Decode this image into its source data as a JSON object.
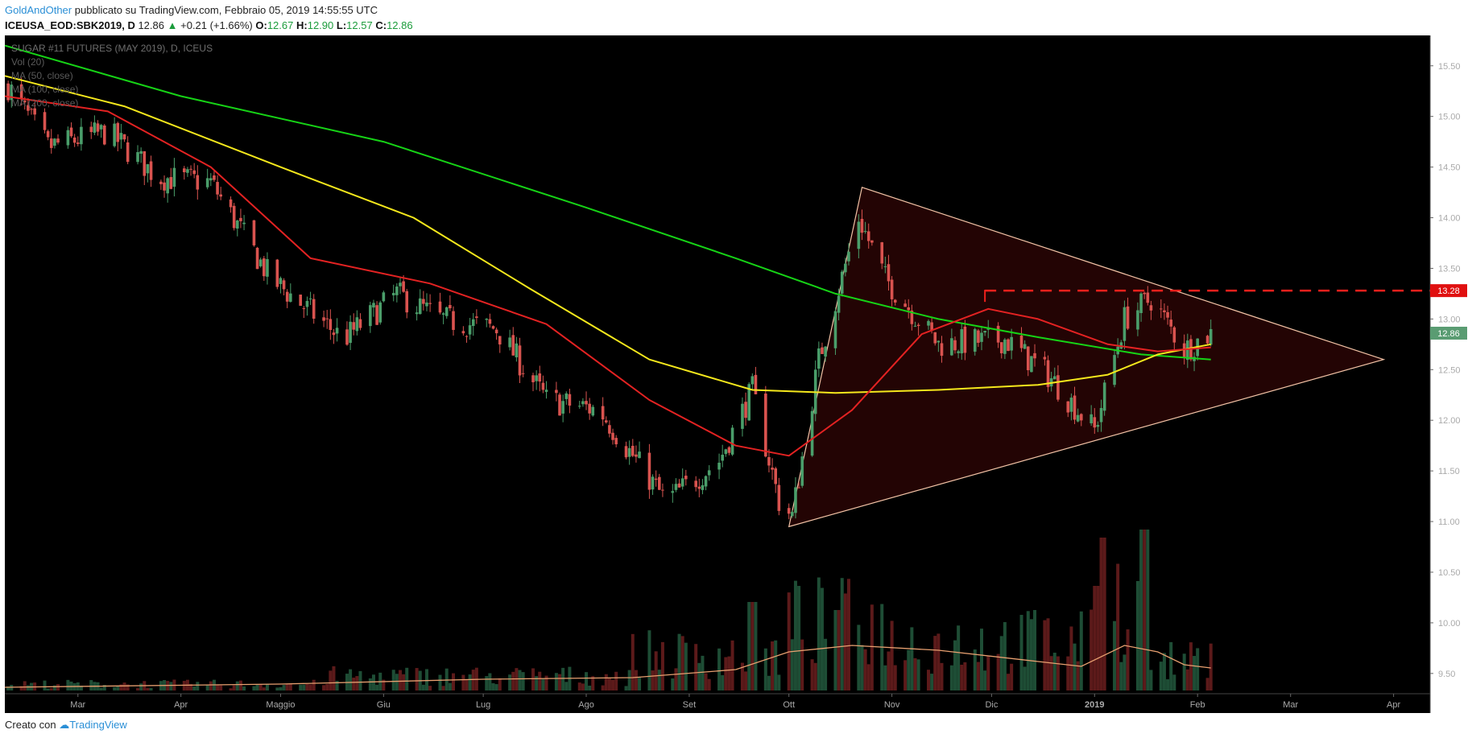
{
  "header": {
    "author": "GoldAndOther",
    "published": "pubblicato su TradingView.com, Febbraio 05, 2019 14:55:55 UTC",
    "symbol": "ICEUSA_EOD:SBK2019, D",
    "price": "12.86",
    "change": "+0.21 (+1.66%)",
    "open_label": "O:",
    "open": "12.67",
    "high_label": "H:",
    "high": "12.90",
    "low_label": "L:",
    "low": "12.57",
    "close_label": "C:",
    "close": "12.86"
  },
  "footer": {
    "created_with": "Creato con",
    "brand": "TradingView"
  },
  "legend": [
    "SUGAR #11 FUTURES (MAY 2019), D, ICEUS",
    "Vol (20)",
    "MA (50, close)",
    "MA (100, close)",
    "MA (200, close)"
  ],
  "colors": {
    "background": "#000000",
    "up_candle": "#4a9e6a",
    "down_candle": "#d9534f",
    "ma50": "#e32222",
    "ma100": "#f5e81c",
    "ma200": "#16d316",
    "triangle": "#f2c3a6",
    "triangle_fill": "#230404",
    "resistance": "#f0201c",
    "vol_up": "#1e4d35",
    "vol_down": "#5c1a1a",
    "vol_ma": "#e8a070",
    "last_price_bg": "#5a9c72",
    "resistance_bg": "#e01010"
  },
  "chart_data": {
    "type": "candlestick",
    "symbol": "SBK2019",
    "y_axis": {
      "ticks": [
        "15.50",
        "15.00",
        "14.50",
        "14.00",
        "13.50",
        "13.00",
        "12.50",
        "12.00",
        "11.50",
        "11.00",
        "10.50",
        "10.00",
        "9.50"
      ],
      "range": [
        9.3,
        15.8
      ]
    },
    "x_axis": {
      "ticks": [
        "Mar",
        "Apr",
        "Maggio",
        "Giu",
        "Lug",
        "Ago",
        "Set",
        "Ott",
        "Nov",
        "Dic",
        "2019",
        "Feb",
        "Mar",
        "Apr"
      ],
      "range": [
        "2018-02-07",
        "2019-04-12"
      ]
    },
    "price_path": [
      {
        "d": "2018-02-08",
        "v": 15.3
      },
      {
        "d": "2018-02-20",
        "v": 14.7
      },
      {
        "d": "2018-03-10",
        "v": 14.85
      },
      {
        "d": "2018-03-25",
        "v": 14.4
      },
      {
        "d": "2018-04-10",
        "v": 14.35
      },
      {
        "d": "2018-04-28",
        "v": 13.4
      },
      {
        "d": "2018-05-20",
        "v": 12.8
      },
      {
        "d": "2018-06-05",
        "v": 13.25
      },
      {
        "d": "2018-06-18",
        "v": 13.0
      },
      {
        "d": "2018-07-05",
        "v": 12.9
      },
      {
        "d": "2018-07-20",
        "v": 12.2
      },
      {
        "d": "2018-08-05",
        "v": 12.1
      },
      {
        "d": "2018-08-25",
        "v": 11.2
      },
      {
        "d": "2018-09-10",
        "v": 11.6
      },
      {
        "d": "2018-09-20",
        "v": 12.3
      },
      {
        "d": "2018-09-28",
        "v": 11.2
      },
      {
        "d": "2018-10-02",
        "v": 11.05
      },
      {
        "d": "2018-10-10",
        "v": 12.6
      },
      {
        "d": "2018-10-22",
        "v": 14.0
      },
      {
        "d": "2018-10-30",
        "v": 13.4
      },
      {
        "d": "2018-11-15",
        "v": 12.75
      },
      {
        "d": "2018-12-05",
        "v": 12.8
      },
      {
        "d": "2018-12-18",
        "v": 12.45
      },
      {
        "d": "2019-01-01",
        "v": 11.9
      },
      {
        "d": "2019-01-10",
        "v": 13.0
      },
      {
        "d": "2019-01-18",
        "v": 13.2
      },
      {
        "d": "2019-01-28",
        "v": 12.7
      },
      {
        "d": "2019-02-05",
        "v": 12.86
      }
    ],
    "ma200": [
      {
        "d": "2018-02-07",
        "v": 15.7
      },
      {
        "d": "2018-04-01",
        "v": 15.2
      },
      {
        "d": "2018-06-01",
        "v": 14.75
      },
      {
        "d": "2018-08-01",
        "v": 14.1
      },
      {
        "d": "2018-09-15",
        "v": 13.6
      },
      {
        "d": "2018-10-15",
        "v": 13.25
      },
      {
        "d": "2018-11-15",
        "v": 13.0
      },
      {
        "d": "2018-12-15",
        "v": 12.82
      },
      {
        "d": "2019-01-15",
        "v": 12.65
      },
      {
        "d": "2019-02-05",
        "v": 12.6
      }
    ],
    "ma100": [
      {
        "d": "2018-02-07",
        "v": 15.4
      },
      {
        "d": "2018-03-15",
        "v": 15.1
      },
      {
        "d": "2018-05-01",
        "v": 14.5
      },
      {
        "d": "2018-06-10",
        "v": 14.0
      },
      {
        "d": "2018-07-15",
        "v": 13.3
      },
      {
        "d": "2018-08-20",
        "v": 12.6
      },
      {
        "d": "2018-09-20",
        "v": 12.3
      },
      {
        "d": "2018-10-15",
        "v": 12.27
      },
      {
        "d": "2018-11-15",
        "v": 12.3
      },
      {
        "d": "2018-12-15",
        "v": 12.35
      },
      {
        "d": "2019-01-05",
        "v": 12.45
      },
      {
        "d": "2019-01-20",
        "v": 12.65
      },
      {
        "d": "2019-02-05",
        "v": 12.75
      }
    ],
    "ma50": [
      {
        "d": "2018-02-07",
        "v": 15.2
      },
      {
        "d": "2018-03-10",
        "v": 15.05
      },
      {
        "d": "2018-04-10",
        "v": 14.5
      },
      {
        "d": "2018-05-10",
        "v": 13.6
      },
      {
        "d": "2018-06-15",
        "v": 13.35
      },
      {
        "d": "2018-07-20",
        "v": 12.95
      },
      {
        "d": "2018-08-20",
        "v": 12.2
      },
      {
        "d": "2018-09-15",
        "v": 11.75
      },
      {
        "d": "2018-10-01",
        "v": 11.65
      },
      {
        "d": "2018-10-20",
        "v": 12.1
      },
      {
        "d": "2018-11-10",
        "v": 12.85
      },
      {
        "d": "2018-11-30",
        "v": 13.1
      },
      {
        "d": "2018-12-15",
        "v": 13.0
      },
      {
        "d": "2019-01-05",
        "v": 12.75
      },
      {
        "d": "2019-01-20",
        "v": 12.68
      },
      {
        "d": "2019-02-05",
        "v": 12.72
      }
    ],
    "triangle": {
      "low": {
        "d": "2018-10-01",
        "v": 10.95
      },
      "high": {
        "d": "2018-10-23",
        "v": 14.3
      },
      "apex": {
        "d": "2019-03-29",
        "v": 12.6
      }
    },
    "resistance": {
      "from": "2018-11-29",
      "to": "2019-04-12",
      "v": 13.28,
      "label": "13.28"
    },
    "last_price": {
      "v": 12.86,
      "label": "12.86"
    },
    "volume": {
      "segments": [
        {
          "from": "2018-02-07",
          "to": "2018-05-15",
          "avg": 0.04
        },
        {
          "from": "2018-05-15",
          "to": "2018-08-15",
          "avg": 0.09
        },
        {
          "from": "2018-08-15",
          "to": "2018-10-01",
          "avg": 0.22
        },
        {
          "from": "2018-10-01",
          "to": "2018-11-01",
          "avg": 0.42
        },
        {
          "from": "2018-11-01",
          "to": "2019-01-01",
          "avg": 0.3
        },
        {
          "from": "2019-01-01",
          "to": "2019-01-18",
          "avg": 0.55
        },
        {
          "from": "2019-01-18",
          "to": "2019-02-05",
          "avg": 0.18
        }
      ],
      "spikes": [
        {
          "d": "2019-01-02",
          "v": 0.65
        },
        {
          "d": "2019-01-04",
          "v": 0.95
        },
        {
          "d": "2019-01-14",
          "v": 0.68
        },
        {
          "d": "2019-01-16",
          "v": 1.0
        },
        {
          "d": "2018-09-20",
          "v": 0.55
        },
        {
          "d": "2018-10-15",
          "v": 0.5
        },
        {
          "d": "2018-12-15",
          "v": 0.5
        }
      ],
      "ma": [
        {
          "d": "2018-02-07",
          "v": 0.02
        },
        {
          "d": "2018-05-01",
          "v": 0.04
        },
        {
          "d": "2018-07-01",
          "v": 0.07
        },
        {
          "d": "2018-08-15",
          "v": 0.08
        },
        {
          "d": "2018-09-15",
          "v": 0.13
        },
        {
          "d": "2018-10-01",
          "v": 0.24
        },
        {
          "d": "2018-10-20",
          "v": 0.28
        },
        {
          "d": "2018-11-15",
          "v": 0.25
        },
        {
          "d": "2018-12-15",
          "v": 0.18
        },
        {
          "d": "2018-12-28",
          "v": 0.15
        },
        {
          "d": "2019-01-10",
          "v": 0.28
        },
        {
          "d": "2019-01-20",
          "v": 0.24
        },
        {
          "d": "2019-01-28",
          "v": 0.16
        },
        {
          "d": "2019-02-05",
          "v": 0.14
        }
      ]
    }
  }
}
